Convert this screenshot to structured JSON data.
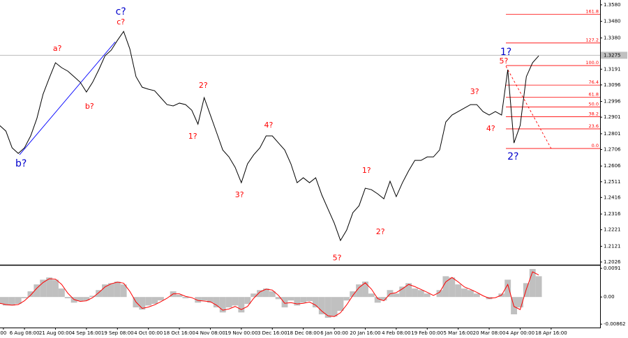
{
  "chart_data": [
    {
      "type": "line",
      "x": [
        2,
        4,
        6,
        8,
        10,
        12,
        14,
        16,
        18,
        20,
        22,
        24,
        26,
        28,
        30,
        32,
        34,
        36,
        38,
        40,
        42,
        44,
        46,
        48,
        50,
        52,
        54,
        56,
        58,
        60,
        62,
        64,
        66,
        68,
        70,
        72,
        74,
        76,
        78,
        80,
        82,
        84,
        86,
        88,
        90,
        92,
        94,
        96,
        98,
        100,
        102,
        104,
        106,
        108,
        110,
        112,
        114,
        116,
        118,
        120,
        122,
        124,
        126,
        128,
        130,
        132,
        134,
        136,
        138,
        140,
        142,
        144,
        146,
        148,
        150,
        152,
        154,
        156,
        158,
        160,
        162,
        164,
        166,
        168,
        170,
        172,
        174,
        176
      ],
      "series": [
        {
          "color": "#000000",
          "values": [
            1.2851,
            1.2817,
            1.2716,
            1.2682,
            1.2716,
            1.2788,
            1.2893,
            1.304,
            1.3137,
            1.323,
            1.32,
            1.3179,
            1.3146,
            1.3112,
            1.3053,
            1.3112,
            1.3188,
            1.3272,
            1.3306,
            1.3365,
            1.3419,
            1.3314,
            1.3146,
            1.3082,
            1.307,
            1.3061,
            1.3019,
            1.2977,
            1.2969,
            1.2986,
            1.2977,
            1.2943,
            1.2859,
            1.3019,
            1.2914,
            1.2809,
            1.2703,
            1.2661,
            1.2598,
            1.2505,
            1.2619,
            1.2674,
            1.2716,
            1.2788,
            1.2788,
            1.2745,
            1.2703,
            1.2619,
            1.2505,
            1.2535,
            1.2505,
            1.2535,
            1.243,
            1.2345,
            1.2261,
            1.2156,
            1.2219,
            1.2324,
            1.2366,
            1.2472,
            1.2463,
            1.2438,
            1.2408,
            1.2514,
            1.2421,
            1.2505,
            1.2577,
            1.264,
            1.264,
            1.2661,
            1.2661,
            1.2703,
            1.2872,
            1.2914,
            1.2935,
            1.2956,
            1.2977,
            1.2977,
            1.2935,
            1.2914,
            1.2935,
            1.2914,
            1.3188,
            1.2745,
            1.2851,
            1.3146,
            1.323,
            1.3272
          ]
        }
      ],
      "xlim": [
        2.1,
        195.8
      ],
      "xticks": [
        {
          "value": 3.2,
          "label": "00"
        },
        {
          "value": 10,
          "label": "6 Aug 08:00"
        },
        {
          "value": 20,
          "label": "21 Aug 00:00"
        },
        {
          "value": 30,
          "label": "4 Sep 16:00"
        },
        {
          "value": 40,
          "label": "19 Sep 08:00"
        },
        {
          "value": 50,
          "label": "4 Oct 00:00"
        },
        {
          "value": 60,
          "label": "18 Oct 16:00"
        },
        {
          "value": 70,
          "label": "4 Nov 08:00"
        },
        {
          "value": 80,
          "label": "19 Nov 00:00"
        },
        {
          "value": 90,
          "label": "3 Dec 16:00"
        },
        {
          "value": 100,
          "label": "18 Dec 08:00"
        },
        {
          "value": 110,
          "label": "6 Jan 00:00"
        },
        {
          "value": 120,
          "label": "20 Jan 16:00"
        },
        {
          "value": 130,
          "label": "4 Feb 08:00"
        },
        {
          "value": 140,
          "label": "19 Feb 00:00"
        },
        {
          "value": 150,
          "label": "5 Mar 16:00"
        },
        {
          "value": 160,
          "label": "20 Mar 08:00"
        },
        {
          "value": 170,
          "label": "4 Apr 00:00"
        },
        {
          "value": 180,
          "label": "18 Apr 16:00"
        }
      ],
      "ylim": [
        1.2009,
        1.3609
      ],
      "yticks": [
        {
          "value": 1.358,
          "label": "1.3580"
        },
        {
          "value": 1.348,
          "label": "1.3480"
        },
        {
          "value": 1.338,
          "label": "1.3380"
        },
        1.3191,
        1.3096,
        1.2996,
        1.2901,
        1.2801,
        1.2706,
        1.2606,
        1.2511,
        1.2416,
        1.2316,
        1.2221,
        1.2121,
        1.2026
      ],
      "last_price": 1.3275,
      "annotations": [
        {
          "text": "c?",
          "color": "#0000cc",
          "x": 41.1,
          "y": 1.3537
        },
        {
          "text": "c?",
          "color": "#ff0000",
          "x": 41.1,
          "y": 1.3474
        },
        {
          "text": "a?",
          "color": "#ff0000",
          "x": 20.6,
          "y": 1.3314
        },
        {
          "text": "b?",
          "color": "#ff0000",
          "x": 31.0,
          "y": 1.2965
        },
        {
          "text": "b?",
          "color": "#0000cc",
          "x": 8.9,
          "y": 1.2619
        },
        {
          "text": "1?",
          "color": "#ff0000",
          "x": 64.3,
          "y": 1.2783
        },
        {
          "text": "2?",
          "color": "#ff0000",
          "x": 67.7,
          "y": 1.3091
        },
        {
          "text": "3?",
          "color": "#ff0000",
          "x": 79.4,
          "y": 1.243
        },
        {
          "text": "4?",
          "color": "#ff0000",
          "x": 88.8,
          "y": 1.2851
        },
        {
          "text": "5?",
          "color": "#ff0000",
          "x": 110.9,
          "y": 1.205
        },
        {
          "text": "1?",
          "color": "#ff0000",
          "x": 120.4,
          "y": 1.2577
        },
        {
          "text": "2?",
          "color": "#ff0000",
          "x": 124.9,
          "y": 1.2206
        },
        {
          "text": "3?",
          "color": "#ff0000",
          "x": 155.3,
          "y": 1.3053
        },
        {
          "text": "4?",
          "color": "#ff0000",
          "x": 160.5,
          "y": 1.283
        },
        {
          "text": "5?",
          "color": "#ff0000",
          "x": 164.7,
          "y": 1.3238
        },
        {
          "text": "1?",
          "color": "#0000cc",
          "x": 165.4,
          "y": 1.3293
        },
        {
          "text": "2?",
          "color": "#0000cc",
          "x": 167.7,
          "y": 1.2661
        }
      ],
      "trendlines": [
        {
          "color": "#0000ff",
          "dashed": false,
          "from": [
            8.4,
            1.2674
          ],
          "to": [
            39.3,
            1.3356
          ]
        },
        {
          "color": "#ff0000",
          "dashed": true,
          "from": [
            165.4,
            1.3209
          ],
          "to": [
            180.0,
            1.2712
          ]
        }
      ],
      "fibonacci": {
        "color": "#ff0000",
        "start_x": 165.4,
        "low": 1.2712,
        "high": 1.3213,
        "levels": [
          161.8,
          127.2,
          {
            "value": 100,
            "label": "100.0"
          },
          76.4,
          61.8,
          {
            "value": 50,
            "label": "50.0"
          },
          38.2,
          23.6,
          {
            "value": 0,
            "label": "0.0"
          }
        ]
      }
    },
    {
      "type": "bar",
      "x": [
        2,
        4,
        6,
        8,
        10,
        12,
        14,
        16,
        18,
        20,
        22,
        24,
        26,
        28,
        30,
        32,
        34,
        36,
        38,
        40,
        42,
        44,
        46,
        48,
        50,
        52,
        54,
        56,
        58,
        60,
        62,
        64,
        66,
        68,
        70,
        72,
        74,
        76,
        78,
        80,
        82,
        84,
        86,
        88,
        90,
        92,
        94,
        96,
        98,
        100,
        102,
        104,
        106,
        108,
        110,
        112,
        114,
        116,
        118,
        120,
        122,
        124,
        126,
        128,
        130,
        132,
        134,
        136,
        138,
        140,
        142,
        144,
        146,
        148,
        150,
        152,
        154,
        156,
        158,
        160,
        162,
        164,
        166,
        168,
        170,
        172,
        174,
        176
      ],
      "series": [
        {
          "color": "#c0c0c0",
          "values": [
            -0.0022,
            -0.0027,
            -0.0027,
            -0.0022,
            -0.0004,
            0.0018,
            0.004,
            0.0055,
            0.0062,
            0.0055,
            0.0027,
            -0.0004,
            -0.0018,
            -0.0013,
            -0.0011,
            0.0004,
            0.0022,
            0.004,
            0.0044,
            0.0049,
            0.004,
            0,
            -0.0033,
            -0.004,
            -0.0027,
            -0.0022,
            -0.0011,
            0,
            0.0018,
            0.0007,
            -0.0004,
            0,
            -0.0018,
            -0.0011,
            -0.0018,
            -0.0033,
            -0.0049,
            -0.0033,
            -0.0027,
            -0.0049,
            -0.0022,
            0.0011,
            0.0022,
            0.0027,
            0.0018,
            -0.0007,
            -0.0033,
            -0.0011,
            -0.0027,
            -0.0018,
            -0.0013,
            -0.0033,
            -0.0055,
            -0.0066,
            -0.0062,
            -0.0044,
            -0.0011,
            0.0018,
            0.004,
            0.0049,
            0.0011,
            -0.0018,
            -0.0011,
            0.0022,
            0.0011,
            0.0033,
            0.0044,
            0.0027,
            0.0022,
            0.0011,
            0,
            0.0022,
            0.0066,
            0.0062,
            0.004,
            0.0027,
            0.0022,
            0.0011,
            0,
            -0.0007,
            0,
            0.0011,
            0.0055,
            -0.0055,
            -0.0033,
            0.0044,
            0.0089,
            0.0066
          ]
        },
        {
          "type": "line",
          "color": "#ff0000",
          "values": [
            -0.002,
            -0.0024,
            -0.0026,
            -0.0024,
            -0.0012,
            0.0006,
            0.0028,
            0.0046,
            0.0058,
            0.0057,
            0.004,
            0.0012,
            -0.0008,
            -0.0014,
            -0.0012,
            -0.0002,
            0.0014,
            0.0032,
            0.0042,
            0.0047,
            0.0044,
            0.0018,
            -0.0016,
            -0.0036,
            -0.0032,
            -0.0025,
            -0.0015,
            -0.0004,
            0.001,
            0.001,
            0.0002,
            -0.0002,
            -0.0011,
            -0.0013,
            -0.0015,
            -0.0026,
            -0.0042,
            -0.0038,
            -0.003,
            -0.004,
            -0.003,
            -0.0004,
            0.0016,
            0.0025,
            0.0022,
            0.0005,
            -0.002,
            -0.0018,
            -0.0022,
            -0.002,
            -0.0016,
            -0.0026,
            -0.0045,
            -0.006,
            -0.0062,
            -0.005,
            -0.0025,
            0.0005,
            0.003,
            0.0045,
            0.0025,
            -0.0005,
            -0.0012,
            0.001,
            0.0014,
            0.0026,
            0.004,
            0.0033,
            0.0024,
            0.0015,
            0.0005,
            0.0015,
            0.0048,
            0.0062,
            0.0048,
            0.0032,
            0.0024,
            0.0015,
            0.0004,
            -0.0004,
            -0.0002,
            0.0006,
            0.004,
            -0.003,
            -0.004,
            0.0025,
            0.008,
            0.007
          ]
        }
      ],
      "xlim": [
        2.1,
        195.8
      ],
      "ylim": [
        -0.0097,
        0.01
      ],
      "yticks": [
        0.0091,
        {
          "value": 0,
          "label": "0.00"
        },
        -0.00862
      ]
    }
  ]
}
